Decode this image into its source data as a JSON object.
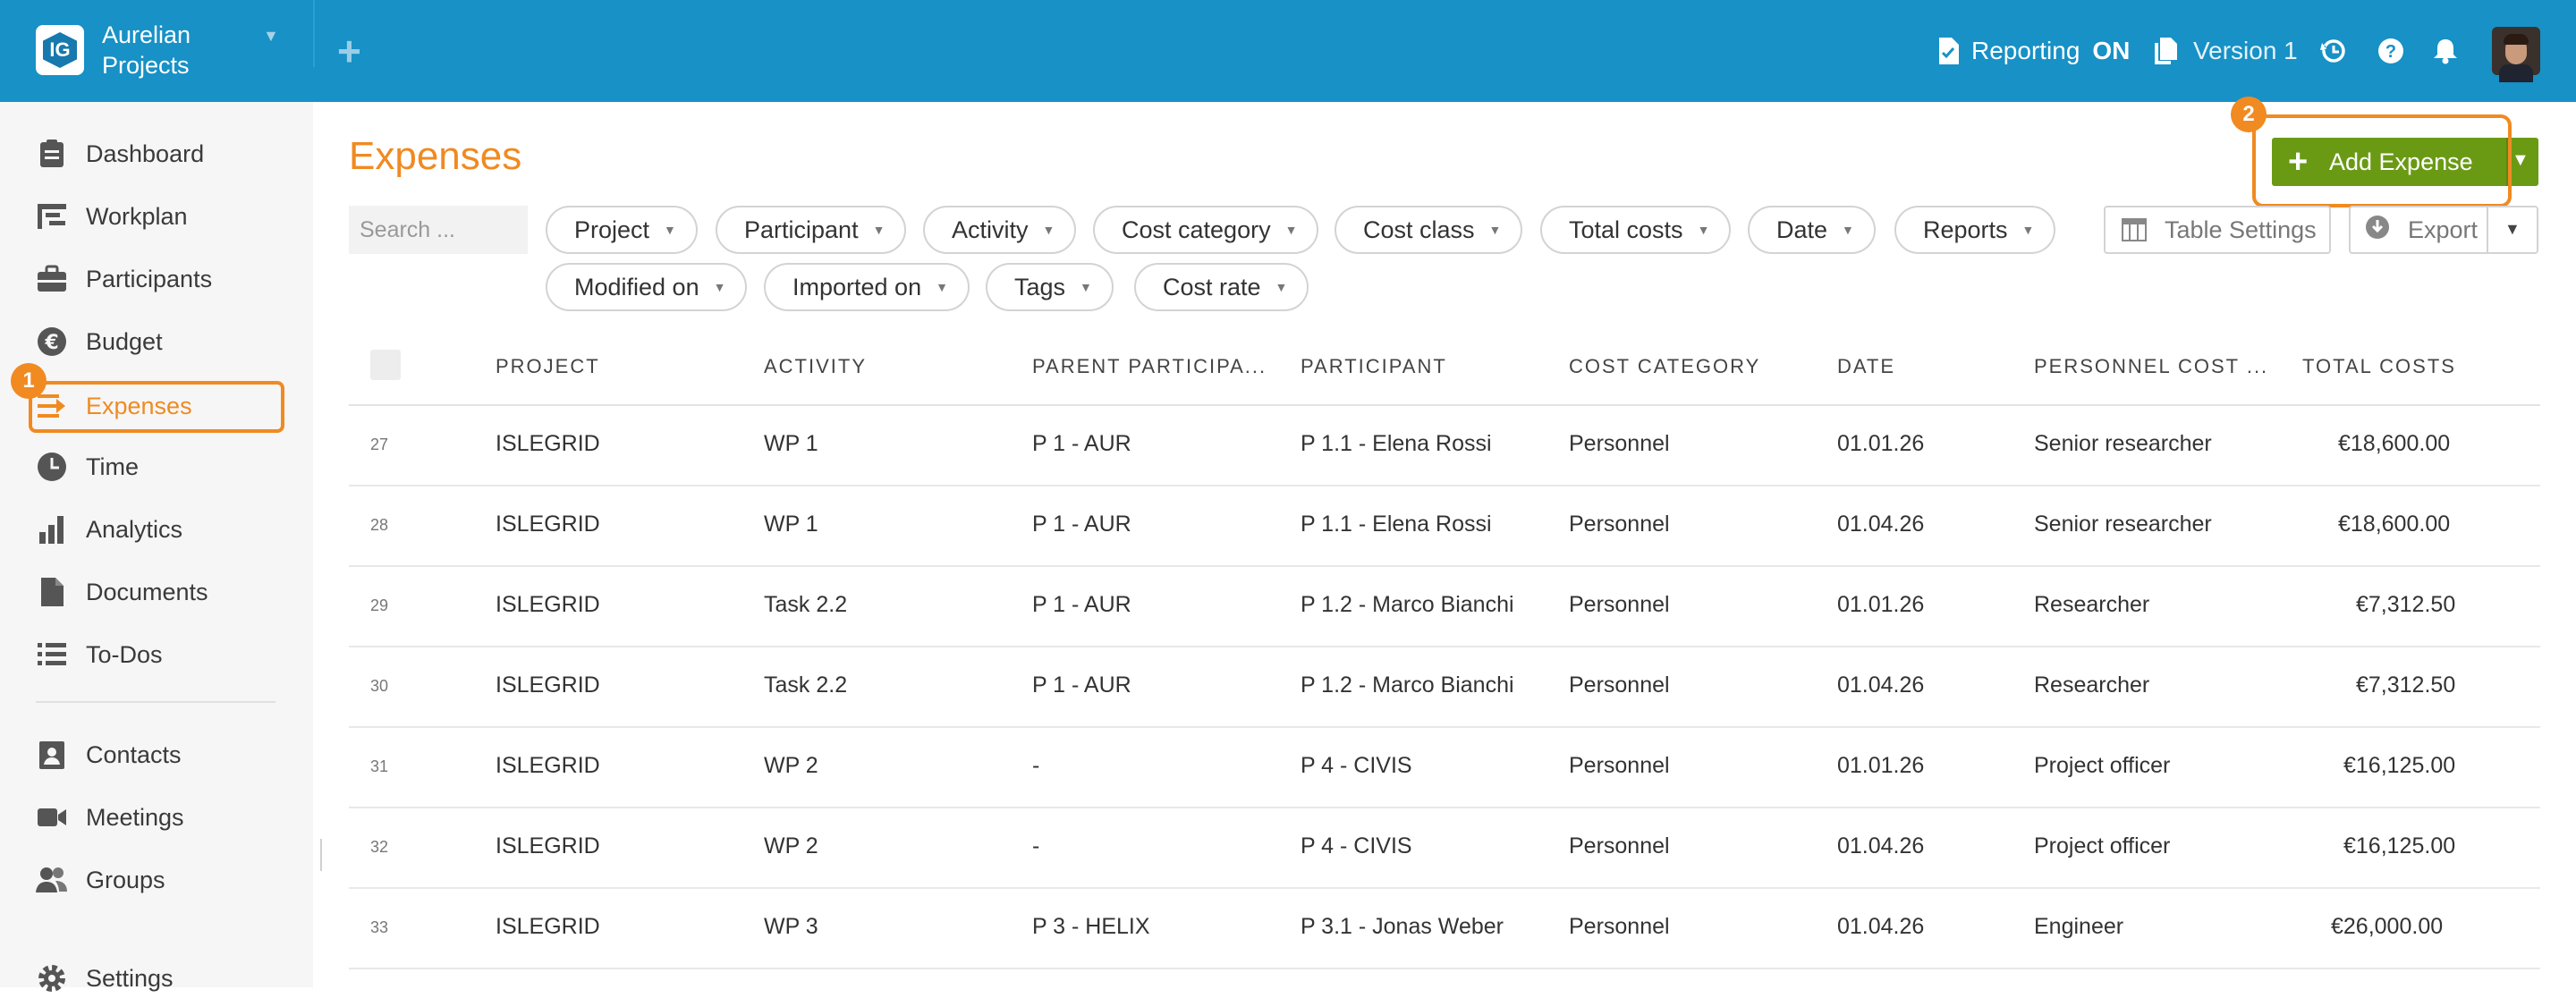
{
  "header": {
    "logo_text": "IG",
    "org_name": "Aurelian Projects",
    "reporting_label": "Reporting",
    "reporting_state": "ON",
    "version_label": "Version 1"
  },
  "sidebar": {
    "items": [
      {
        "label": "Dashboard",
        "icon": "dashboard-icon"
      },
      {
        "label": "Workplan",
        "icon": "workplan-icon"
      },
      {
        "label": "Participants",
        "icon": "participants-icon"
      },
      {
        "label": "Budget",
        "icon": "budget-icon"
      },
      {
        "label": "Expenses",
        "icon": "expenses-icon",
        "active": true
      },
      {
        "label": "Time",
        "icon": "time-icon"
      },
      {
        "label": "Analytics",
        "icon": "analytics-icon"
      },
      {
        "label": "Documents",
        "icon": "documents-icon"
      },
      {
        "label": "To-Dos",
        "icon": "todos-icon"
      },
      {
        "label": "Contacts",
        "icon": "contacts-icon"
      },
      {
        "label": "Meetings",
        "icon": "meetings-icon"
      },
      {
        "label": "Groups",
        "icon": "groups-icon"
      },
      {
        "label": "Settings",
        "icon": "settings-icon"
      }
    ]
  },
  "annotations": {
    "badge1": "1",
    "badge2": "2"
  },
  "page": {
    "title": "Expenses",
    "add_button": "Add Expense"
  },
  "search": {
    "placeholder": "Search ..."
  },
  "filters": [
    "Project",
    "Participant",
    "Activity",
    "Cost category",
    "Cost class",
    "Total costs",
    "Date",
    "Reports",
    "Modified on",
    "Imported on",
    "Tags",
    "Cost rate"
  ],
  "toolbar": {
    "table_settings": "Table Settings",
    "export": "Export"
  },
  "table": {
    "columns": [
      "PROJECT",
      "ACTIVITY",
      "PARENT PARTICIPA...",
      "PARTICIPANT",
      "COST CATEGORY",
      "DATE",
      "PERSONNEL COST ...",
      "TOTAL COSTS"
    ],
    "rows": [
      {
        "num": "27",
        "project": "ISLEGRID",
        "activity": "WP 1",
        "parent": "P 1 - AUR",
        "participant": "P 1.1 - Elena Rossi",
        "category": "Personnel",
        "date": "01.01.26",
        "personnel": "Senior researcher",
        "total": "€18,600.00"
      },
      {
        "num": "28",
        "project": "ISLEGRID",
        "activity": "WP 1",
        "parent": "P 1 - AUR",
        "participant": "P 1.1 - Elena Rossi",
        "category": "Personnel",
        "date": "01.04.26",
        "personnel": "Senior researcher",
        "total": "€18,600.00"
      },
      {
        "num": "29",
        "project": "ISLEGRID",
        "activity": "Task 2.2",
        "parent": "P 1 - AUR",
        "participant": "P 1.2 - Marco Bianchi",
        "category": "Personnel",
        "date": "01.01.26",
        "personnel": "Researcher",
        "total": "€7,312.50"
      },
      {
        "num": "30",
        "project": "ISLEGRID",
        "activity": "Task 2.2",
        "parent": "P 1 - AUR",
        "participant": "P 1.2 - Marco Bianchi",
        "category": "Personnel",
        "date": "01.04.26",
        "personnel": "Researcher",
        "total": "€7,312.50"
      },
      {
        "num": "31",
        "project": "ISLEGRID",
        "activity": "WP 2",
        "parent": "-",
        "participant": "P 4 - CIVIS",
        "category": "Personnel",
        "date": "01.01.26",
        "personnel": "Project officer",
        "total": "€16,125.00"
      },
      {
        "num": "32",
        "project": "ISLEGRID",
        "activity": "WP 2",
        "parent": "-",
        "participant": "P 4 - CIVIS",
        "category": "Personnel",
        "date": "01.04.26",
        "personnel": "Project officer",
        "total": "€16,125.00"
      },
      {
        "num": "33",
        "project": "ISLEGRID",
        "activity": "WP 3",
        "parent": "P 3 - HELIX",
        "participant": "P 3.1 - Jonas Weber",
        "category": "Personnel",
        "date": "01.04.26",
        "personnel": "Engineer",
        "total": "€26,000.00"
      }
    ]
  },
  "colors": {
    "topbar": "#1791c6",
    "accent": "#f08a21",
    "add_button": "#6a9a14"
  }
}
